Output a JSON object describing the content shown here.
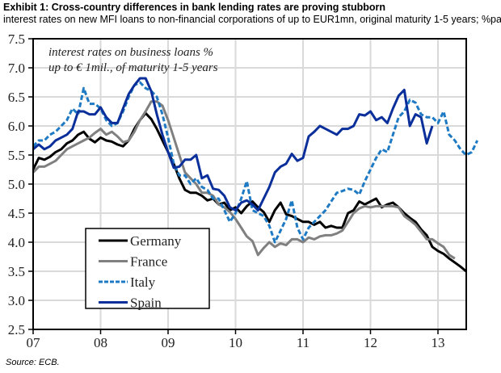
{
  "header": {
    "title": "Exhibit 1: Cross-country differences in bank lending rates are proving stubborn",
    "subtitle": "interest rates on new MFI loans to non-financial corporations of up to EUR1mn, original maturity 1-5 years; %pa"
  },
  "source": "Source: ECB.",
  "chart_data": {
    "type": "line",
    "title": "Exhibit 1: Cross-country differences in bank lending rates are proving stubborn",
    "subtitle": "interest rates on new MFI loans to non-financial corporations of up to EUR1mn, original maturity 1-5 years; %pa",
    "annotation": [
      "interest rates on business loans %",
      "up to € 1mil., of  maturity 1-5 years"
    ],
    "xlabel": "",
    "ylabel": "",
    "x_ticks": [
      "07",
      "08",
      "09",
      "10",
      "11",
      "12",
      "13"
    ],
    "y_ticks": [
      "2.5",
      "3.0",
      "3.5",
      "4.0",
      "4.5",
      "5.0",
      "5.5",
      "6.0",
      "6.5",
      "7.0",
      "7.5"
    ],
    "ylim": [
      2.5,
      7.5
    ],
    "xlim_years": [
      2007,
      2013.42
    ],
    "grid": true,
    "legend_position": "bottom-left",
    "x_start": "2007-01",
    "x_step": "monthly",
    "series": [
      {
        "name": "Germany",
        "color": "#000000",
        "style": "solid",
        "values": [
          5.25,
          5.45,
          5.42,
          5.47,
          5.55,
          5.6,
          5.7,
          5.75,
          5.85,
          5.9,
          5.78,
          5.72,
          5.8,
          5.75,
          5.73,
          5.68,
          5.65,
          5.75,
          5.95,
          6.1,
          6.22,
          6.12,
          5.95,
          5.75,
          5.55,
          5.35,
          5.1,
          4.9,
          4.85,
          4.85,
          4.8,
          4.72,
          4.75,
          4.65,
          4.68,
          4.55,
          4.6,
          4.5,
          4.62,
          4.7,
          4.6,
          4.52,
          4.35,
          4.55,
          4.68,
          4.48,
          4.45,
          4.4,
          4.35,
          4.35,
          4.3,
          4.35,
          4.25,
          4.28,
          4.25,
          4.25,
          4.5,
          4.55,
          4.7,
          4.65,
          4.7,
          4.75,
          4.6,
          4.65,
          4.68,
          4.6,
          4.5,
          4.42,
          4.35,
          4.22,
          4.12,
          3.92,
          3.85,
          3.8,
          3.72,
          3.65,
          3.58,
          3.5
        ]
      },
      {
        "name": "France",
        "color": "#808080",
        "style": "solid",
        "values": [
          5.2,
          5.3,
          5.3,
          5.35,
          5.4,
          5.5,
          5.6,
          5.65,
          5.7,
          5.75,
          5.8,
          5.88,
          5.95,
          5.85,
          5.9,
          5.82,
          5.72,
          5.75,
          5.9,
          6.1,
          6.25,
          6.42,
          6.42,
          6.35,
          6.1,
          5.8,
          5.5,
          5.2,
          5.1,
          5.0,
          4.85,
          4.85,
          4.8,
          4.65,
          4.6,
          4.52,
          4.4,
          4.25,
          4.1,
          4.02,
          3.78,
          3.9,
          4.0,
          3.92,
          3.98,
          3.95,
          4.05,
          4.05,
          4.0,
          4.08,
          4.05,
          4.1,
          4.12,
          4.12,
          4.15,
          4.2,
          4.35,
          4.5,
          4.58,
          4.62,
          4.6,
          4.62,
          4.62,
          4.62,
          4.62,
          4.6,
          4.45,
          4.38,
          4.3,
          4.18,
          4.05,
          4.05,
          3.98,
          3.92,
          3.78,
          3.72
        ]
      },
      {
        "name": "Italy",
        "color": "#1f7ac4",
        "style": "dashed",
        "values": [
          5.65,
          5.75,
          5.75,
          5.85,
          5.9,
          6.0,
          6.1,
          6.3,
          6.2,
          6.65,
          6.38,
          6.38,
          6.3,
          6.1,
          6.0,
          6.05,
          6.25,
          6.5,
          6.7,
          6.75,
          6.65,
          6.6,
          6.5,
          6.2,
          5.8,
          5.35,
          5.15,
          5.15,
          5.0,
          5.1,
          4.95,
          4.9,
          4.75,
          4.75,
          4.55,
          4.35,
          4.5,
          4.75,
          5.05,
          4.55,
          4.5,
          4.45,
          4.28,
          4.0,
          4.2,
          4.4,
          4.72,
          4.25,
          4.05,
          4.25,
          4.35,
          4.45,
          4.55,
          4.7,
          4.85,
          4.88,
          4.92,
          4.9,
          4.82,
          5.05,
          5.25,
          5.45,
          5.6,
          5.55,
          5.85,
          6.15,
          6.25,
          6.45,
          6.4,
          6.2,
          6.15,
          6.15,
          6.05,
          6.25,
          5.85,
          5.75,
          5.6,
          5.5,
          5.55,
          5.75
        ]
      },
      {
        "name": "Spain",
        "color": "#0a2f9a",
        "style": "solid",
        "values": [
          5.6,
          5.68,
          5.6,
          5.65,
          5.75,
          5.8,
          5.85,
          5.95,
          6.25,
          6.25,
          6.2,
          6.2,
          6.32,
          6.15,
          6.05,
          6.05,
          6.3,
          6.55,
          6.7,
          6.82,
          6.82,
          6.6,
          6.2,
          5.85,
          5.55,
          5.28,
          5.3,
          5.42,
          5.42,
          5.5,
          5.1,
          5.15,
          4.92,
          4.9,
          4.8,
          4.6,
          4.55,
          4.68,
          4.72,
          4.65,
          4.55,
          4.75,
          4.95,
          5.2,
          5.3,
          5.35,
          5.52,
          5.4,
          5.45,
          5.82,
          5.9,
          6.0,
          5.95,
          5.9,
          5.85,
          5.95,
          5.95,
          6.0,
          6.2,
          6.18,
          6.25,
          6.1,
          6.15,
          6.05,
          6.3,
          6.52,
          6.62,
          6.0,
          6.2,
          6.15,
          5.7,
          6.0
        ]
      }
    ]
  }
}
